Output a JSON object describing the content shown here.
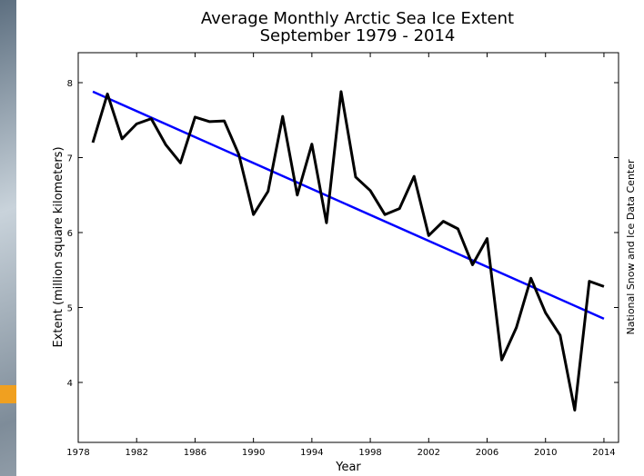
{
  "chart_data": {
    "type": "line",
    "title": "Average Monthly Arctic Sea Ice Extent",
    "subtitle": "September 1979 - 2014",
    "x_label": "Year",
    "y_label": "Extent (million square kilometers)",
    "source": "National Snow and Ice Data Center",
    "x": [
      1979,
      1980,
      1981,
      1982,
      1983,
      1984,
      1985,
      1986,
      1987,
      1988,
      1989,
      1990,
      1991,
      1992,
      1993,
      1994,
      1995,
      1996,
      1997,
      1998,
      1999,
      2000,
      2001,
      2002,
      2003,
      2004,
      2005,
      2006,
      2007,
      2008,
      2009,
      2010,
      2011,
      2012,
      2013,
      2014
    ],
    "series": [
      {
        "color": "#000000",
        "values": [
          7.2,
          7.85,
          7.25,
          7.45,
          7.52,
          7.17,
          6.93,
          7.54,
          7.48,
          7.49,
          7.04,
          6.24,
          6.55,
          7.55,
          6.5,
          7.18,
          6.13,
          7.88,
          6.74,
          6.56,
          6.24,
          6.32,
          6.75,
          5.96,
          6.15,
          6.05,
          5.57,
          5.92,
          4.3,
          4.73,
          5.39,
          4.93,
          4.63,
          3.63,
          5.35,
          5.28
        ]
      }
    ],
    "trend": {
      "color": "#0000ff",
      "x": [
        1979,
        2014
      ],
      "values": [
        7.88,
        4.85
      ]
    },
    "xlim": [
      1978,
      2015
    ],
    "ylim": [
      3.2,
      8.4
    ],
    "xticks": [
      1978,
      1982,
      1986,
      1990,
      1994,
      1998,
      2002,
      2006,
      2010,
      2014
    ],
    "yticks": [
      4,
      5,
      6,
      7,
      8
    ]
  }
}
